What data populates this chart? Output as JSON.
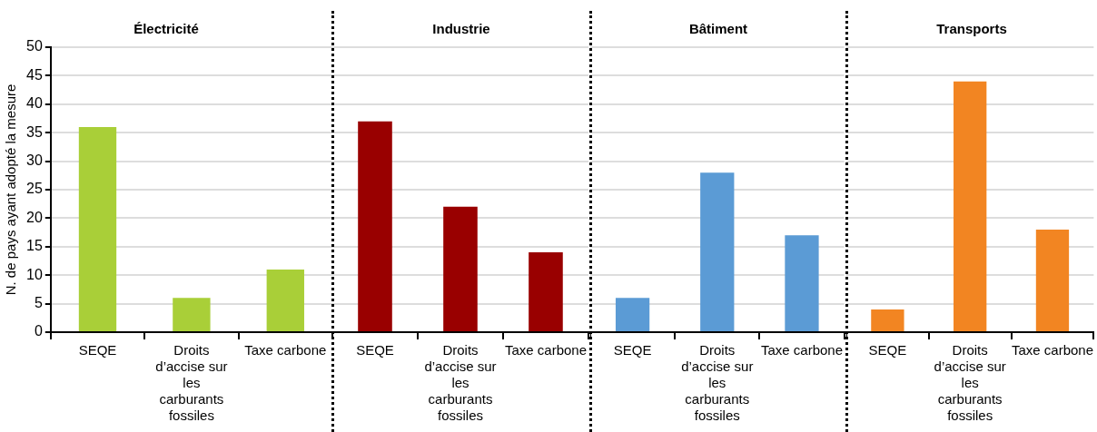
{
  "chart_data": [
    {
      "type": "bar",
      "title": "Électricité",
      "ylabel": "N. de pays ayant adopté la mesure",
      "categories": [
        "SEQE",
        "Droits d’accise sur les carburants fossiles",
        "Taxe carbone"
      ],
      "values": [
        36,
        6,
        11
      ],
      "color": "#a9cf38",
      "ylim": [
        0,
        50
      ],
      "yticks": [
        0,
        5,
        10,
        15,
        20,
        25,
        30,
        35,
        40,
        45,
        50
      ],
      "grid": "y"
    },
    {
      "type": "bar",
      "title": "Industrie",
      "categories": [
        "SEQE",
        "Droits d’accise sur les carburants fossiles",
        "Taxe carbone"
      ],
      "values": [
        37,
        22,
        14
      ],
      "color": "#990000",
      "ylim": [
        0,
        50
      ],
      "yticks": [
        0,
        5,
        10,
        15,
        20,
        25,
        30,
        35,
        40,
        45,
        50
      ],
      "grid": "y",
      "tick_labels": "x"
    },
    {
      "type": "bar",
      "title": "Bâtiment",
      "categories": [
        "SEQE",
        "Droits d’accise sur les carburants fossiles",
        "Taxe carbone"
      ],
      "values": [
        6,
        28,
        17
      ],
      "color": "#5b9bd5",
      "ylim": [
        0,
        50
      ],
      "yticks": [
        0,
        5,
        10,
        15,
        20,
        25,
        30,
        35,
        40,
        45,
        50
      ],
      "grid": "y",
      "tick_labels": "x"
    },
    {
      "type": "bar",
      "title": "Transports",
      "categories": [
        "SEQE",
        "Droits d’accise sur les carburants fossiles",
        "Taxe carbone"
      ],
      "values": [
        4,
        44,
        18
      ],
      "color": "#f28522",
      "ylim": [
        0,
        50
      ],
      "yticks": [
        0,
        5,
        10,
        15,
        20,
        25,
        30,
        35,
        40,
        45,
        50
      ],
      "grid": "y",
      "tick_labels": "x"
    }
  ]
}
